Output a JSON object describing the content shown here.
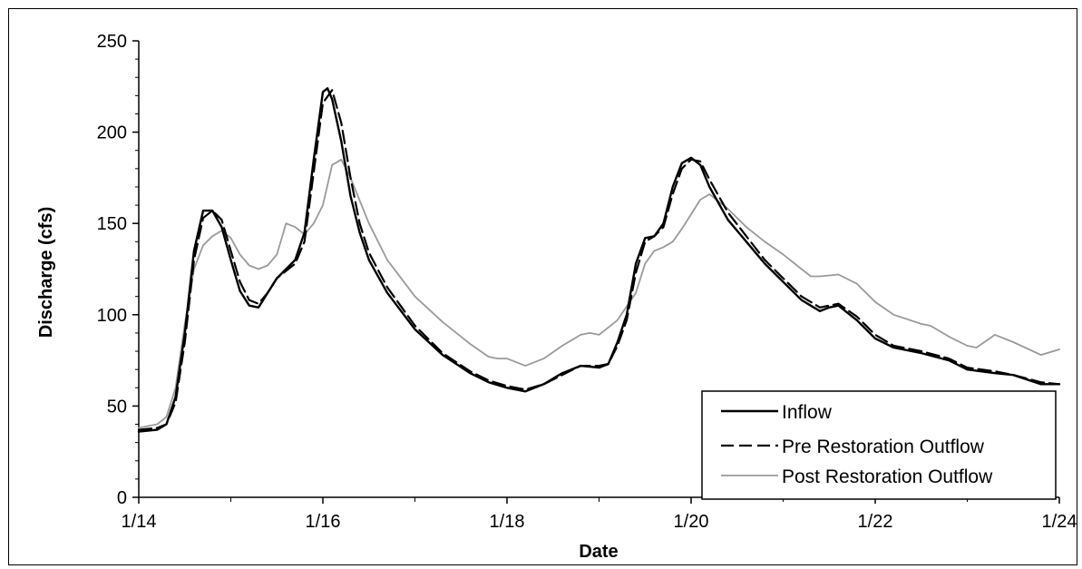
{
  "chart_data": {
    "type": "line",
    "xlabel": "Date",
    "ylabel": "Discharge (cfs)",
    "x_ticks": [
      "1/14",
      "1/16",
      "1/18",
      "1/20",
      "1/22",
      "1/24"
    ],
    "y_ticks": [
      "0",
      "50",
      "100",
      "150",
      "200",
      "250"
    ],
    "xlim": [
      14,
      24
    ],
    "ylim": [
      0,
      250
    ],
    "x_units": "day of month (January)",
    "grid": false,
    "legend_position": "bottom-right",
    "series": [
      {
        "name": "Inflow",
        "style": "solid",
        "color": "#000000",
        "x": [
          14.0,
          14.2,
          14.3,
          14.4,
          14.5,
          14.6,
          14.7,
          14.8,
          14.9,
          15.0,
          15.1,
          15.2,
          15.3,
          15.4,
          15.5,
          15.7,
          15.8,
          15.9,
          16.0,
          16.05,
          16.1,
          16.2,
          16.3,
          16.4,
          16.5,
          16.7,
          17.0,
          17.3,
          17.6,
          17.8,
          18.0,
          18.2,
          18.4,
          18.6,
          18.8,
          19.0,
          19.1,
          19.2,
          19.3,
          19.4,
          19.5,
          19.6,
          19.7,
          19.8,
          19.9,
          20.0,
          20.1,
          20.2,
          20.4,
          20.6,
          20.8,
          21.0,
          21.2,
          21.4,
          21.5,
          21.6,
          21.8,
          22.0,
          22.2,
          22.5,
          22.8,
          23.0,
          23.3,
          23.5,
          23.8,
          24.0
        ],
        "y": [
          36,
          37,
          40,
          55,
          90,
          135,
          157,
          157,
          148,
          130,
          113,
          105,
          104,
          112,
          120,
          130,
          145,
          185,
          222,
          224,
          218,
          195,
          165,
          145,
          130,
          112,
          92,
          78,
          68,
          63,
          60,
          58,
          62,
          68,
          72,
          71,
          73,
          85,
          100,
          128,
          142,
          143,
          150,
          170,
          183,
          186,
          182,
          170,
          152,
          140,
          128,
          118,
          108,
          102,
          104,
          105,
          97,
          87,
          82,
          79,
          75,
          70,
          68,
          67,
          62,
          62
        ]
      },
      {
        "name": "Pre Restoration Outflow",
        "style": "dashed",
        "color": "#000000",
        "x": [
          14.0,
          14.2,
          14.3,
          14.4,
          14.5,
          14.6,
          14.7,
          14.8,
          14.9,
          15.0,
          15.1,
          15.2,
          15.3,
          15.4,
          15.5,
          15.7,
          15.8,
          15.9,
          16.0,
          16.1,
          16.2,
          16.3,
          16.4,
          16.5,
          16.7,
          17.0,
          17.3,
          17.6,
          17.8,
          18.0,
          18.2,
          18.4,
          18.6,
          18.8,
          19.0,
          19.1,
          19.2,
          19.3,
          19.4,
          19.5,
          19.6,
          19.7,
          19.8,
          19.9,
          20.0,
          20.1,
          20.2,
          20.4,
          20.6,
          20.8,
          21.0,
          21.2,
          21.4,
          21.5,
          21.6,
          21.8,
          22.0,
          22.2,
          22.5,
          22.8,
          23.0,
          23.3,
          23.5,
          23.8,
          24.0
        ],
        "y": [
          37,
          38,
          40,
          52,
          85,
          130,
          153,
          157,
          152,
          135,
          118,
          108,
          106,
          112,
          120,
          128,
          140,
          178,
          216,
          223,
          205,
          175,
          150,
          134,
          115,
          94,
          79,
          69,
          64,
          61,
          59,
          62,
          67,
          72,
          72,
          73,
          83,
          97,
          123,
          140,
          143,
          148,
          166,
          180,
          185,
          184,
          174,
          156,
          143,
          130,
          120,
          110,
          104,
          105,
          106,
          99,
          89,
          83,
          80,
          76,
          71,
          69,
          67,
          63,
          62
        ]
      },
      {
        "name": "Post Restoration Outflow",
        "style": "solid-gray",
        "color": "#9a9a9a",
        "x": [
          14.0,
          14.2,
          14.3,
          14.4,
          14.5,
          14.6,
          14.7,
          14.8,
          14.9,
          15.0,
          15.1,
          15.2,
          15.3,
          15.4,
          15.5,
          15.6,
          15.7,
          15.8,
          15.9,
          16.0,
          16.1,
          16.2,
          16.3,
          16.5,
          16.7,
          17.0,
          17.3,
          17.6,
          17.8,
          17.9,
          18.0,
          18.2,
          18.4,
          18.6,
          18.8,
          18.9,
          19.0,
          19.2,
          19.4,
          19.5,
          19.6,
          19.7,
          19.8,
          19.9,
          20.0,
          20.1,
          20.2,
          20.4,
          20.6,
          20.8,
          21.0,
          21.2,
          21.3,
          21.4,
          21.6,
          21.8,
          22.0,
          22.2,
          22.5,
          22.6,
          22.8,
          23.0,
          23.1,
          23.3,
          23.5,
          23.8,
          24.0
        ],
        "y": [
          38,
          40,
          44,
          60,
          95,
          125,
          138,
          143,
          146,
          142,
          133,
          127,
          125,
          127,
          133,
          150,
          148,
          144,
          150,
          160,
          182,
          185,
          175,
          150,
          130,
          110,
          96,
          84,
          77,
          76,
          76,
          72,
          76,
          83,
          89,
          90,
          89,
          97,
          112,
          128,
          135,
          137,
          140,
          147,
          155,
          163,
          166,
          158,
          148,
          140,
          133,
          125,
          121,
          121,
          122,
          117,
          107,
          100,
          95,
          94,
          88,
          83,
          82,
          89,
          85,
          78,
          81
        ]
      }
    ]
  }
}
